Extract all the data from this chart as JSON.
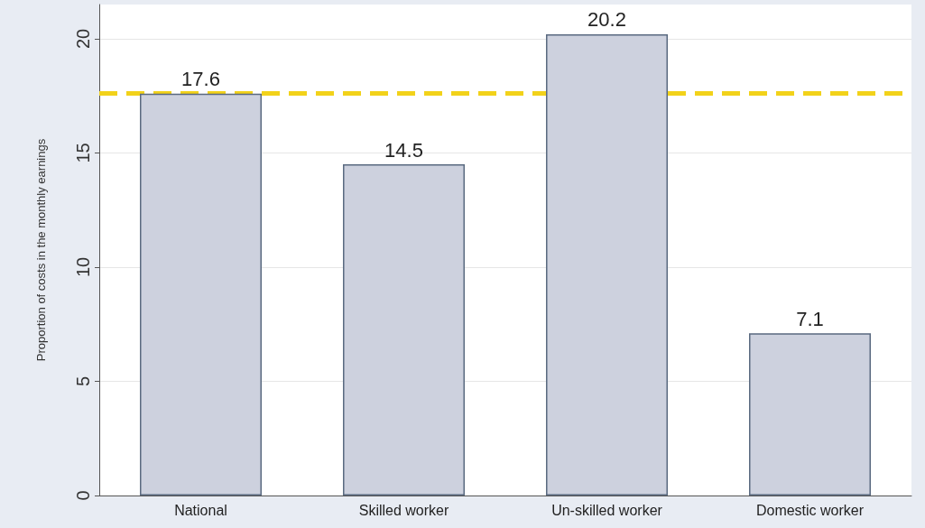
{
  "chart_data": {
    "type": "bar",
    "ylabel": "Proportion of costs in the monthly earnings",
    "categories": [
      "National",
      "Skilled worker",
      "Un-skilled worker",
      "Domestic worker"
    ],
    "values": [
      17.6,
      14.5,
      20.2,
      7.1
    ],
    "color": "#cdd1de",
    "data_labels": true,
    "ylim": [
      0,
      21.5
    ],
    "yticks": [
      0,
      5,
      10,
      15,
      20
    ],
    "grid": "y",
    "ref_lines": [
      {
        "axis": "y",
        "value": 17.6,
        "color": "#f2d21a",
        "line_style": "dashed"
      }
    ]
  }
}
